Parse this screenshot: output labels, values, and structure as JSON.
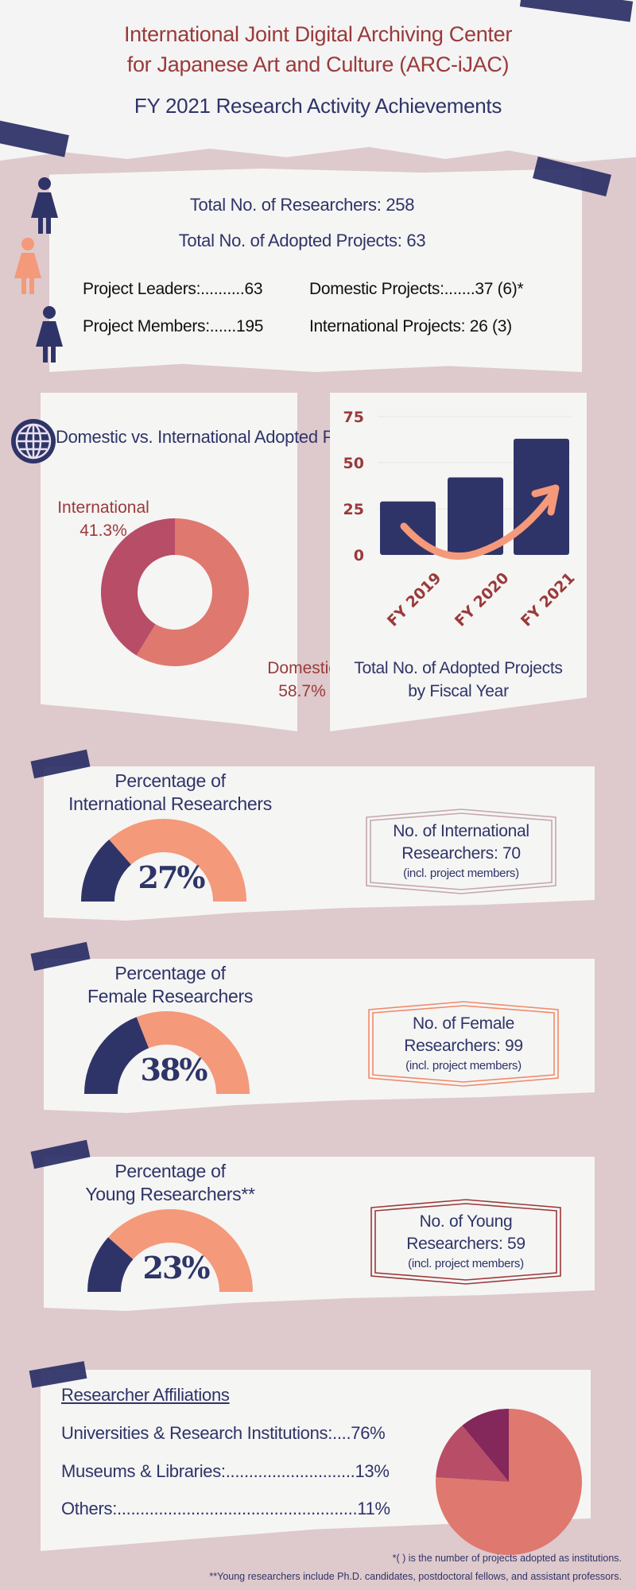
{
  "header": {
    "title_line1": "International Joint Digital Archiving Center",
    "title_line2": "for Japanese Art and Culture (ARC-iJAC)",
    "subtitle": "FY 2021 Research Activity Achievements"
  },
  "summary": {
    "total_researchers": "Total No. of Researchers: 258",
    "total_projects": "Total No. of Adopted Projects: 63",
    "project_leaders": "Project Leaders:..........63",
    "project_members": "Project Members:......195",
    "domestic_projects": "Domestic Projects:.......37 (6)*",
    "international_projects": "International Projects: 26 (3)"
  },
  "colors": {
    "navy": "#2f3468",
    "salmon": "#f4997a",
    "coral": "#df786e",
    "rose": "#b84d68",
    "plum": "#84275a",
    "dark_red": "#9a3a3a"
  },
  "chart_data": [
    {
      "type": "pie",
      "variant": "donut",
      "title": "Domestic vs. International Adopted Projects",
      "slices": [
        {
          "label": "Domestic",
          "value": 58.7,
          "display": "58.7%",
          "color": "#df786e"
        },
        {
          "label": "International",
          "value": 41.3,
          "display": "41.3%",
          "color": "#b84d68"
        }
      ]
    },
    {
      "type": "bar",
      "title": "Total No. of Adopted Projects",
      "title_line2": "by Fiscal Year",
      "categories": [
        "FY 2019",
        "FY 2020",
        "FY 2021"
      ],
      "values": [
        29,
        42,
        63
      ],
      "yticks": [
        "0",
        "25",
        "50",
        "75"
      ],
      "ylim": [
        0,
        75
      ],
      "grid": true,
      "annotation": "upward-trend-arrow"
    },
    {
      "type": "pie",
      "title": "Researcher Affiliations",
      "slices": [
        {
          "label": "Universities & Research Institutions",
          "value": 76,
          "color": "#df786e"
        },
        {
          "label": "Museums & Libraries",
          "value": 13,
          "color": "#b84d68"
        },
        {
          "label": "Others",
          "value": 11,
          "color": "#84275a"
        }
      ]
    }
  ],
  "gauges": [
    {
      "title1": "Percentage of",
      "title2": "International Researchers",
      "value": 27,
      "display": "27%",
      "box_line1": "No. of International",
      "box_line2": "Researchers: 70",
      "box_note": "(incl. project members)",
      "box_color": "#c4a8ad"
    },
    {
      "title1": "Percentage of",
      "title2": "Female Researchers",
      "value": 38,
      "display": "38%",
      "box_line1": "No. of Female",
      "box_line2": "Researchers: 99",
      "box_note": "(incl. project members)",
      "box_color": "#f08a6a"
    },
    {
      "title1": "Percentage of",
      "title2": "Young Researchers**",
      "value": 23,
      "display": "23%",
      "box_line1": "No. of Young",
      "box_line2": "Researchers: 59",
      "box_note": "(incl. project members)",
      "box_color": "#9a3a3a"
    }
  ],
  "affiliations": {
    "heading": "Researcher Affiliations",
    "rows": [
      "Universities & Research Institutions:....76%",
      "Museums & Libraries:............................13%",
      "Others:....................................................11%"
    ]
  },
  "footnotes": [
    "*( ) is the number of projects adopted as institutions.",
    "**Young researchers include Ph.D. candidates, postdoctoral fellows, and assistant professors."
  ]
}
